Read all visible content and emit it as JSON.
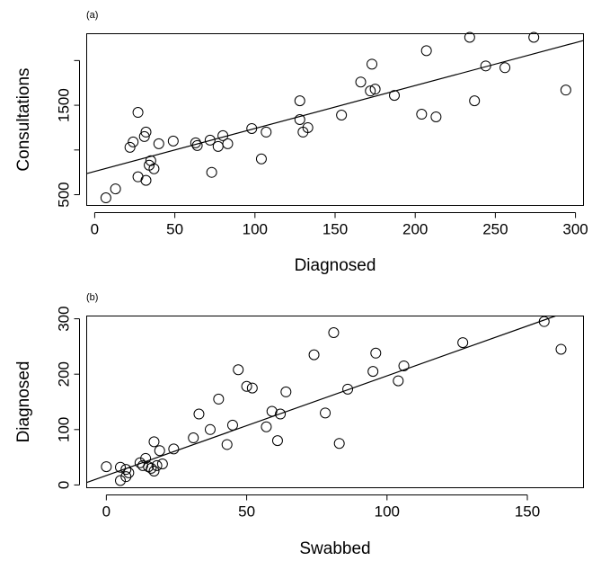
{
  "chart_data": [
    {
      "panel_label": "(a)",
      "type": "scatter",
      "xlabel": "Diagnosed",
      "ylabel": "Consultations",
      "xlim": [
        -5,
        305
      ],
      "ylim": [
        380,
        2300
      ],
      "x_ticks": [
        0,
        50,
        100,
        150,
        200,
        250,
        300
      ],
      "y_ticks": [
        500,
        1000,
        1500,
        2000
      ],
      "y_tick_labels": [
        "500",
        "",
        "1500",
        ""
      ],
      "points": [
        [
          7,
          465
        ],
        [
          13,
          565
        ],
        [
          22,
          1030
        ],
        [
          24,
          1090
        ],
        [
          27,
          1420
        ],
        [
          27,
          700
        ],
        [
          31,
          1150
        ],
        [
          32,
          1200
        ],
        [
          32,
          660
        ],
        [
          34,
          830
        ],
        [
          35,
          880
        ],
        [
          37,
          790
        ],
        [
          40,
          1070
        ],
        [
          49,
          1100
        ],
        [
          63,
          1080
        ],
        [
          64,
          1050
        ],
        [
          72,
          1110
        ],
        [
          73,
          750
        ],
        [
          77,
          1040
        ],
        [
          80,
          1160
        ],
        [
          83,
          1070
        ],
        [
          98,
          1240
        ],
        [
          104,
          900
        ],
        [
          107,
          1200
        ],
        [
          128,
          1550
        ],
        [
          128,
          1340
        ],
        [
          130,
          1200
        ],
        [
          133,
          1250
        ],
        [
          154,
          1390
        ],
        [
          166,
          1760
        ],
        [
          172,
          1660
        ],
        [
          173,
          1960
        ],
        [
          175,
          1680
        ],
        [
          187,
          1610
        ],
        [
          204,
          1400
        ],
        [
          207,
          2110
        ],
        [
          213,
          1370
        ],
        [
          234,
          2260
        ],
        [
          237,
          1550
        ],
        [
          244,
          1940
        ],
        [
          256,
          1920
        ],
        [
          274,
          2260
        ],
        [
          294,
          1670
        ]
      ],
      "fit_line": {
        "intercept": 760,
        "slope": 4.8
      }
    },
    {
      "panel_label": "(b)",
      "type": "scatter",
      "xlabel": "Swabbed",
      "ylabel": "Diagnosed",
      "xlim": [
        -7,
        170
      ],
      "ylim": [
        -5,
        305
      ],
      "x_ticks": [
        0,
        50,
        100,
        150
      ],
      "y_ticks": [
        0,
        100,
        200,
        300
      ],
      "y_tick_labels": [
        "0",
        "100",
        "200",
        "300"
      ],
      "points": [
        [
          0,
          33
        ],
        [
          5,
          8
        ],
        [
          5,
          32
        ],
        [
          7,
          28
        ],
        [
          7,
          15
        ],
        [
          8,
          22
        ],
        [
          12,
          40
        ],
        [
          13,
          35
        ],
        [
          14,
          48
        ],
        [
          15,
          33
        ],
        [
          16,
          30
        ],
        [
          17,
          25
        ],
        [
          17,
          78
        ],
        [
          18,
          35
        ],
        [
          19,
          62
        ],
        [
          20,
          38
        ],
        [
          24,
          65
        ],
        [
          31,
          85
        ],
        [
          33,
          128
        ],
        [
          37,
          100
        ],
        [
          40,
          155
        ],
        [
          43,
          73
        ],
        [
          45,
          108
        ],
        [
          47,
          208
        ],
        [
          50,
          178
        ],
        [
          52,
          175
        ],
        [
          57,
          105
        ],
        [
          59,
          133
        ],
        [
          61,
          80
        ],
        [
          62,
          128
        ],
        [
          64,
          168
        ],
        [
          74,
          235
        ],
        [
          78,
          130
        ],
        [
          81,
          275
        ],
        [
          83,
          75
        ],
        [
          86,
          173
        ],
        [
          95,
          205
        ],
        [
          96,
          238
        ],
        [
          104,
          188
        ],
        [
          106,
          215
        ],
        [
          127,
          257
        ],
        [
          156,
          295
        ],
        [
          162,
          245
        ]
      ],
      "fit_line": {
        "intercept": 17,
        "slope": 1.8
      }
    }
  ]
}
